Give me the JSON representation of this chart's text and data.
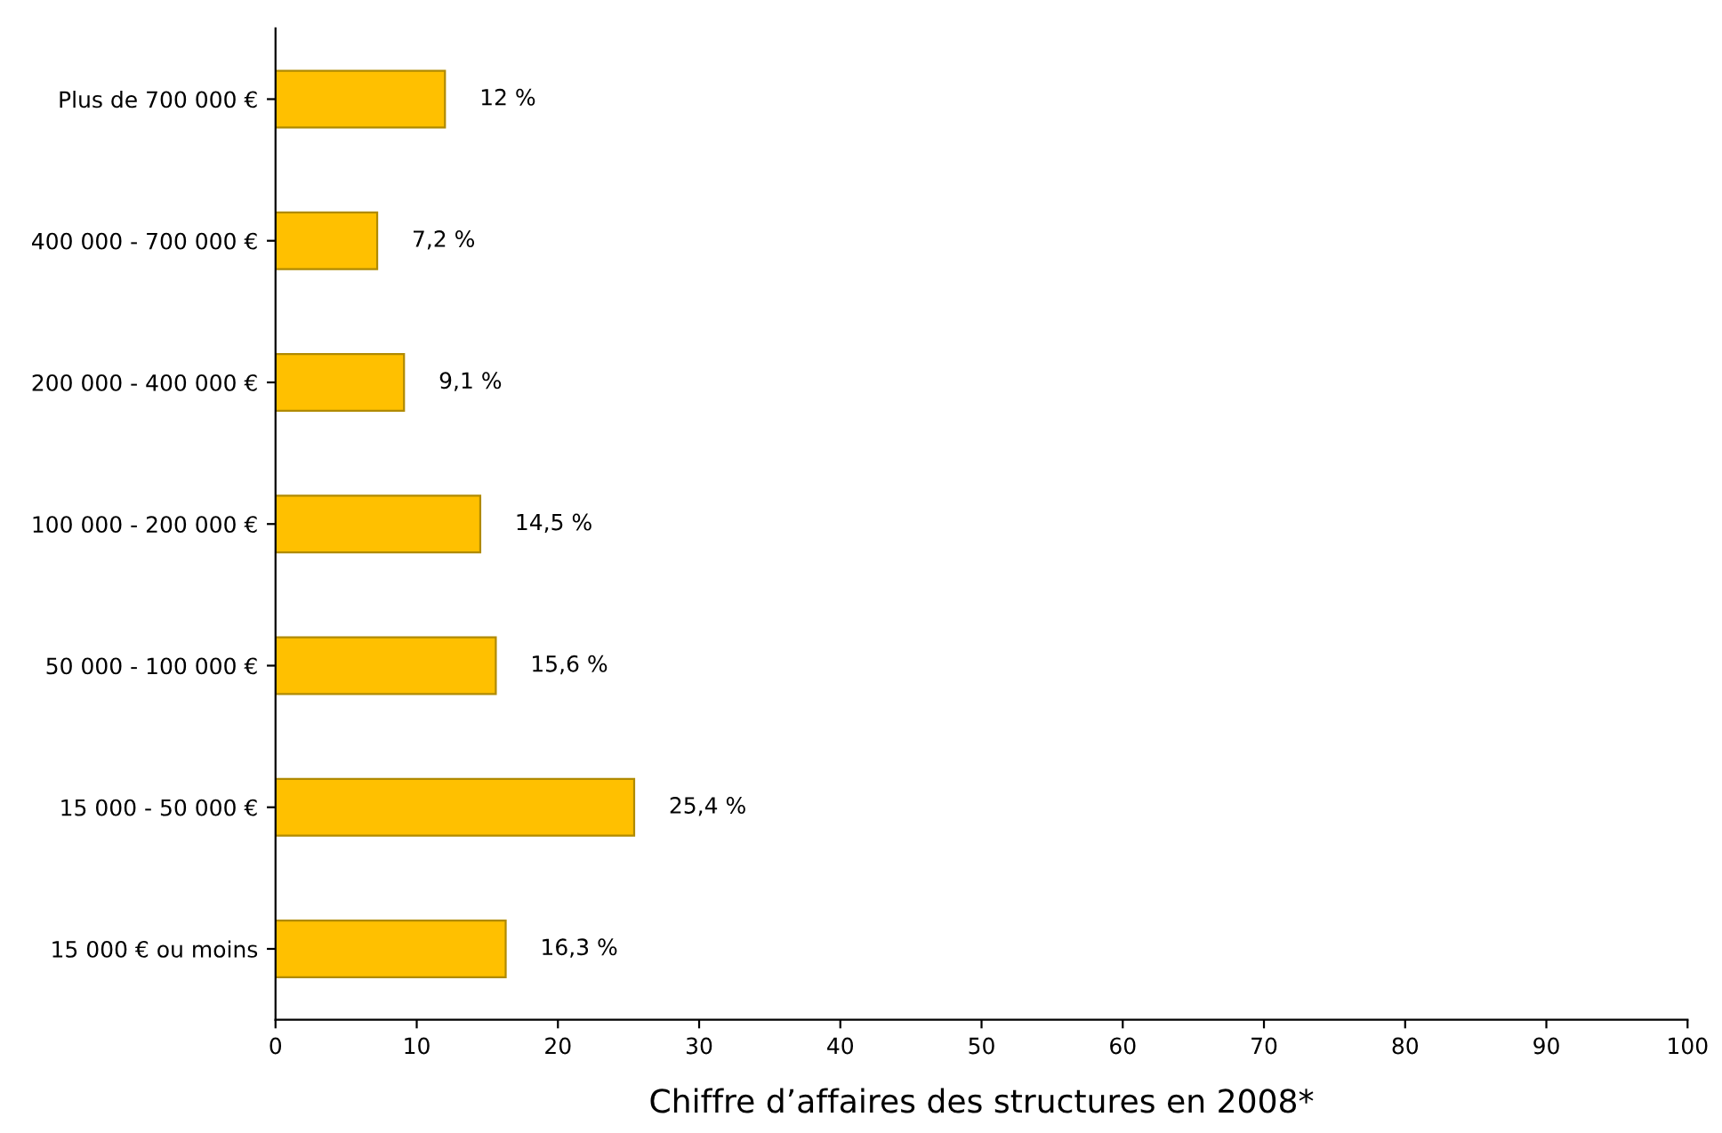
{
  "chart_data": {
    "type": "bar",
    "orientation": "horizontal",
    "xlabel": "Chiffre d’affaires des structures en 2008*",
    "categories": [
      "Plus de 700 000 €",
      "400 000 - 700 000 €",
      "200 000 - 400 000 €",
      "100 000 - 200 000 €",
      "50 000 - 100 000 €",
      "15 000 - 50 000 €",
      "15 000 € ou moins"
    ],
    "values": [
      12,
      7.2,
      9.1,
      14.5,
      15.6,
      25.4,
      16.3
    ],
    "value_labels": [
      "12 %",
      "7,2 %",
      "9,1 %",
      "14,5 %",
      "15,6 %",
      "25,4 %",
      "16,3 %"
    ],
    "color": "#ffc000",
    "xlim": [
      0,
      100
    ],
    "xticks": [
      0,
      10,
      20,
      30,
      40,
      50,
      60,
      70,
      80,
      90,
      100
    ],
    "grid": false,
    "legend": false
  }
}
